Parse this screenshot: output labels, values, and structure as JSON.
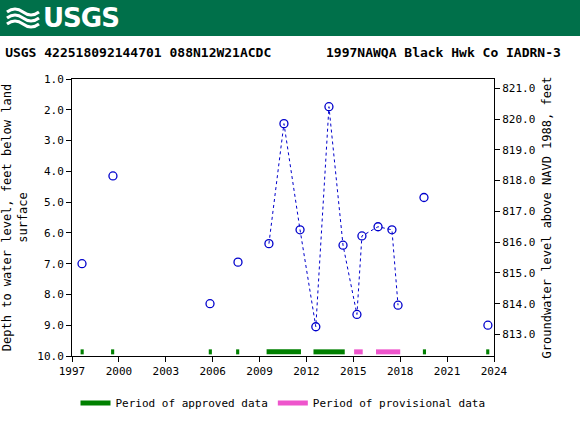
{
  "header": "USGS",
  "chart_data": {
    "type": "scatter",
    "title": "USGS 422518092144701 088N12W21ACDC       1997NAWQA Black Hwk Co IADRN-3",
    "x_label": null,
    "y_label": "Depth to water level, feet below land\nsurface",
    "y2_label": "Groundwater level above NAVD 1988, feet",
    "x": [
      1997.64,
      null,
      1999.62,
      null,
      2005.83,
      null,
      2007.62,
      null,
      2009.6,
      2010.56,
      2011.59,
      2012.6,
      2013.44,
      2014.34,
      2015.23,
      2015.55,
      2016.58,
      2017.47,
      2017.86,
      null,
      2019.52,
      null,
      2023.61
    ],
    "values": [
      7.0,
      null,
      4.15,
      null,
      8.3,
      null,
      6.95,
      null,
      6.35,
      2.45,
      5.9,
      9.05,
      1.9,
      6.4,
      8.65,
      6.1,
      5.8,
      5.9,
      8.35,
      null,
      4.85,
      null,
      9.0
    ],
    "color": "#0000cc",
    "marker": "open_circle",
    "line_style": "dotted",
    "xlim": [
      1997,
      2024
    ],
    "xticks": [
      1997,
      2000,
      2003,
      2006,
      2009,
      2012,
      2015,
      2018,
      2021,
      2024
    ],
    "ylim": [
      10,
      1
    ],
    "yticks": [
      {
        "value": 1,
        "label": "1.0"
      },
      {
        "value": 2,
        "label": "2.0"
      },
      {
        "value": 3,
        "label": "3.0"
      },
      {
        "value": 4,
        "label": "4.0"
      },
      {
        "value": 5,
        "label": "5.0"
      },
      {
        "value": 6,
        "label": "6.0"
      },
      {
        "value": 7,
        "label": "7.0"
      },
      {
        "value": 8,
        "label": "8.0"
      },
      {
        "value": 9,
        "label": "9.0"
      },
      {
        "value": 10,
        "label": "10.0"
      }
    ],
    "y2lim": [
      812.3,
      821.3
    ],
    "y2ticks": [
      {
        "value": 813,
        "label": "813.0"
      },
      {
        "value": 814,
        "label": "814.0"
      },
      {
        "value": 815,
        "label": "815.0"
      },
      {
        "value": 816,
        "label": "816.0"
      },
      {
        "value": 817,
        "label": "817.0"
      },
      {
        "value": 818,
        "label": "818.0"
      },
      {
        "value": 819,
        "label": "819.0"
      },
      {
        "value": 820,
        "label": "820.0"
      },
      {
        "value": 821,
        "label": "821.0"
      }
    ],
    "grid": false,
    "legend": "bottom",
    "periods": [
      {
        "name": "Period of approved data",
        "color": "#008000",
        "ranges": [
          [
            1997.55,
            1997.75
          ],
          [
            1999.5,
            1999.7
          ],
          [
            2005.75,
            2005.95
          ],
          [
            2007.5,
            2007.7
          ],
          [
            2009.45,
            2011.65
          ],
          [
            2012.45,
            2014.45
          ],
          [
            2019.45,
            2019.65
          ],
          [
            2023.5,
            2023.7
          ]
        ]
      },
      {
        "name": "Period of provisional data",
        "color": "#ee55cc",
        "ranges": [
          [
            2015.05,
            2015.6
          ],
          [
            2016.45,
            2018.0
          ]
        ]
      }
    ]
  }
}
